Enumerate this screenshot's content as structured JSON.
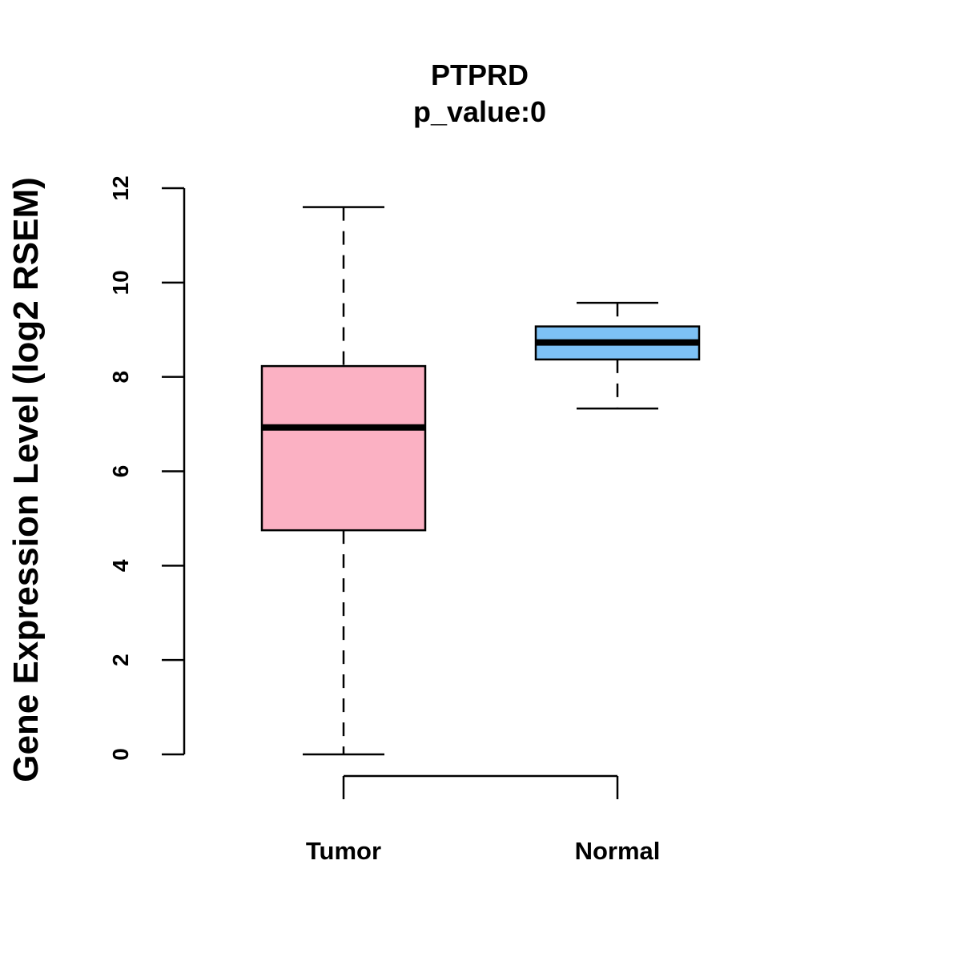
{
  "chart_data": {
    "type": "box",
    "title": "PTPRD",
    "subtitle": "p_value:0",
    "xlabel": "",
    "ylabel": "Gene Expression Level (log2 RSEM)",
    "ylim": [
      0,
      12
    ],
    "yticks": [
      0,
      2,
      4,
      6,
      8,
      10,
      12
    ],
    "grid": false,
    "legend": "none",
    "categories": [
      "Tumor",
      "Normal"
    ],
    "boxes": [
      {
        "category": "Tumor",
        "whisker_low": 0.0,
        "q1": 4.75,
        "median": 6.93,
        "q3": 8.23,
        "whisker_high": 11.6,
        "color": "#FBB1C3"
      },
      {
        "category": "Normal",
        "whisker_low": 7.33,
        "q1": 8.37,
        "median": 8.73,
        "q3": 9.07,
        "whisker_high": 9.57,
        "color": "#7DC1F5"
      }
    ]
  }
}
